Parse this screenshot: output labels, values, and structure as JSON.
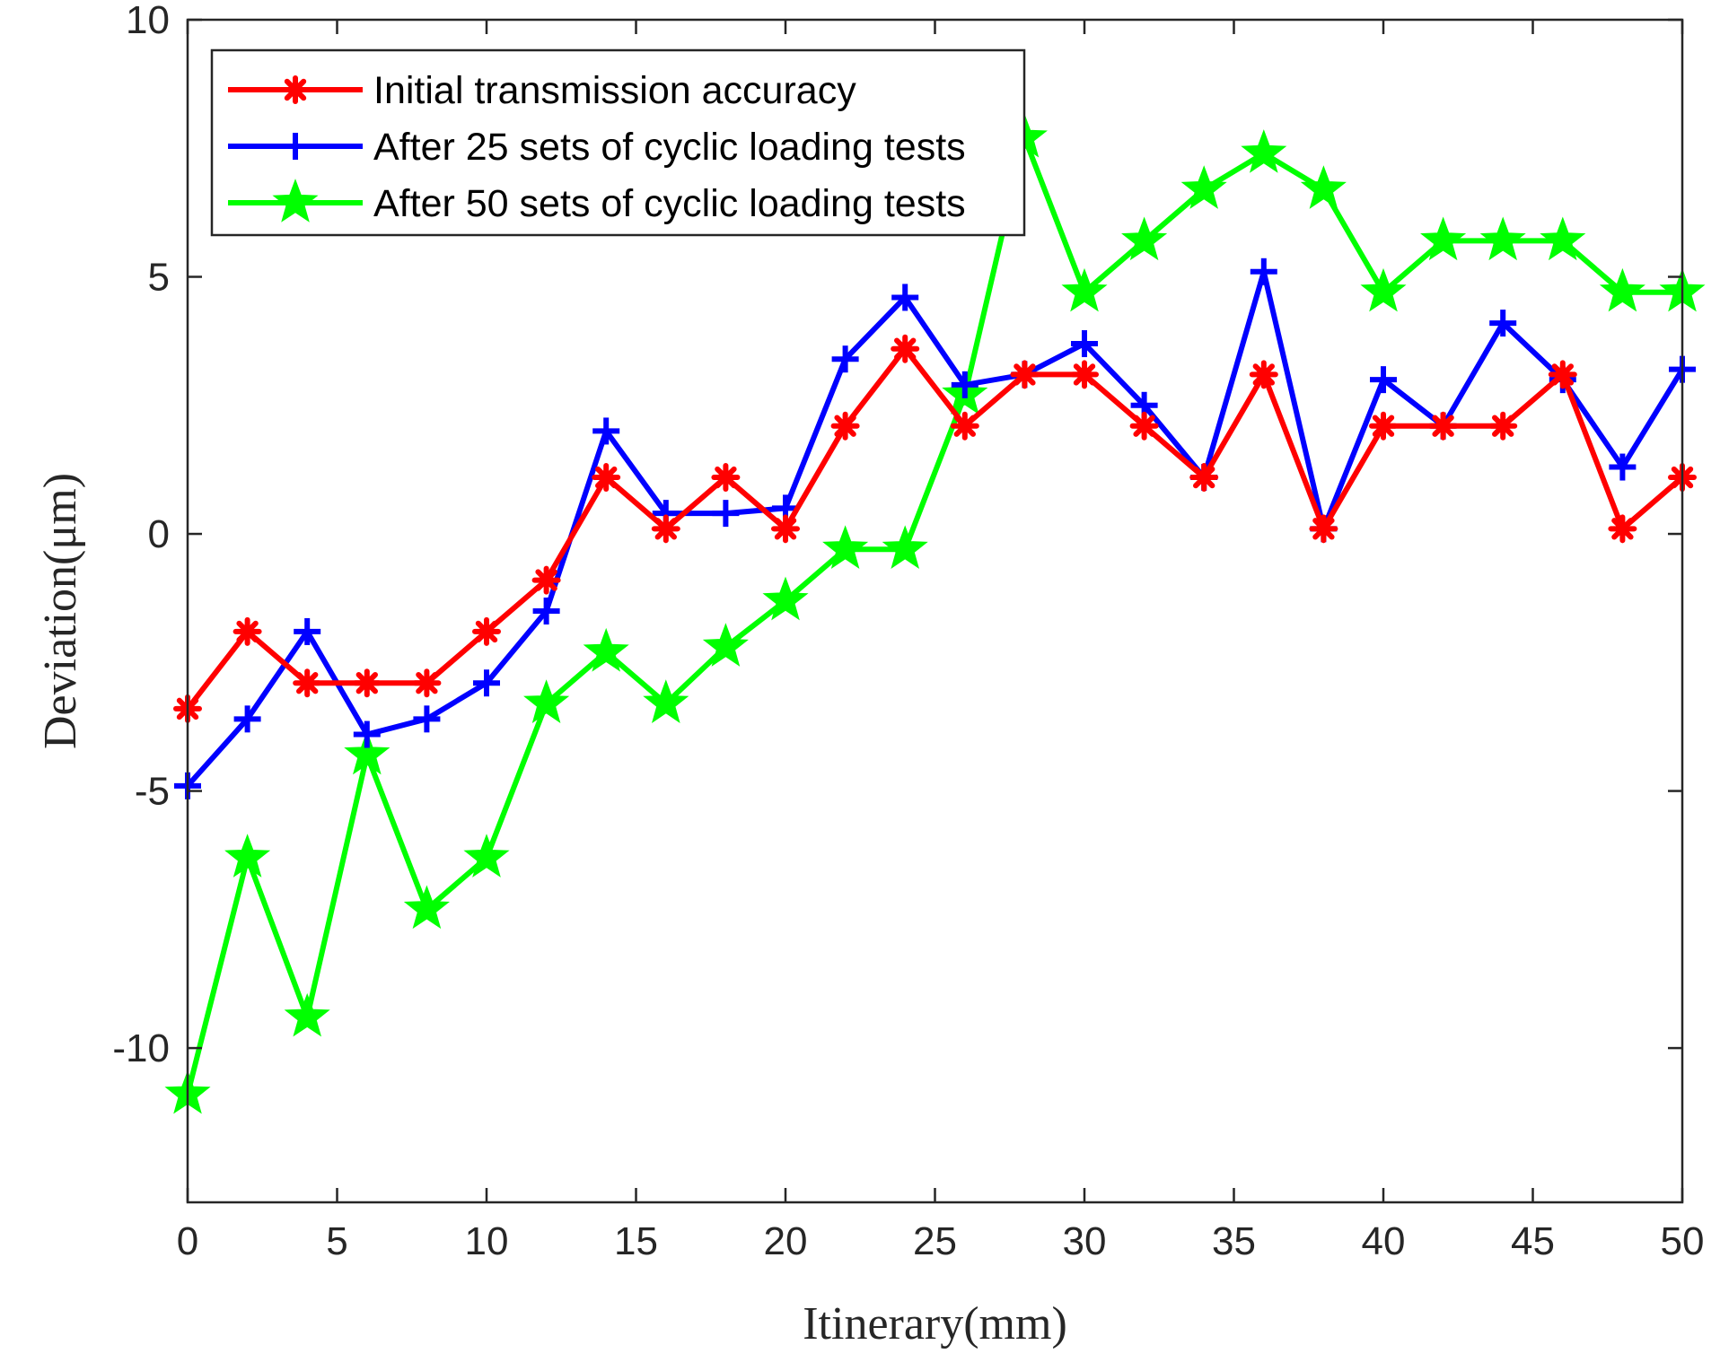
{
  "chart_data": {
    "type": "line",
    "title": "",
    "xlabel": "Itinerary(mm)",
    "ylabel": "Deviation(μm)",
    "xlim": [
      0,
      50
    ],
    "ylim": [
      -13,
      10
    ],
    "x_ticks": [
      0,
      5,
      10,
      15,
      20,
      25,
      30,
      35,
      40,
      45,
      50
    ],
    "x_tick_labels": [
      "0",
      "5",
      "10",
      "15",
      "20",
      "25",
      "30",
      "35",
      "40",
      "45",
      "50"
    ],
    "y_ticks": [
      -10,
      -5,
      0,
      5,
      10
    ],
    "y_tick_labels": [
      "-10",
      "-5",
      "0",
      "5",
      "10"
    ],
    "grid": false,
    "legend_position": "top-left",
    "x": [
      0,
      2,
      4,
      6,
      8,
      10,
      12,
      14,
      16,
      18,
      20,
      22,
      24,
      26,
      28,
      30,
      32,
      34,
      36,
      38,
      40,
      42,
      44,
      46,
      48,
      50
    ],
    "series": [
      {
        "name": "Initial transmission accuracy",
        "color": "#ff0000",
        "marker": "asterisk",
        "values": [
          -3.4,
          -1.9,
          -2.9,
          -2.9,
          -2.9,
          -1.9,
          -0.9,
          1.1,
          0.1,
          1.1,
          0.1,
          2.1,
          3.6,
          2.1,
          3.1,
          3.1,
          2.1,
          1.1,
          3.1,
          0.1,
          2.1,
          2.1,
          2.1,
          3.1,
          0.1,
          1.1
        ]
      },
      {
        "name": "After 25 sets of cyclic loading tests",
        "color": "#0000ff",
        "marker": "plus",
        "values": [
          -4.9,
          -3.6,
          -1.9,
          -3.9,
          -3.6,
          -2.9,
          -1.5,
          2.0,
          0.4,
          0.4,
          0.5,
          3.4,
          4.6,
          2.9,
          3.1,
          3.7,
          2.5,
          1.1,
          5.1,
          0.1,
          3.0,
          2.1,
          4.1,
          3.0,
          1.3,
          3.2
        ]
      },
      {
        "name": "After 50 sets of cyclic loading tests",
        "color": "#00ff00",
        "marker": "star",
        "values": [
          -10.9,
          -6.3,
          -9.4,
          -4.3,
          -7.3,
          -6.3,
          -3.3,
          -2.3,
          -3.3,
          -2.2,
          -1.3,
          -0.3,
          -0.3,
          2.7,
          7.7,
          4.7,
          5.7,
          6.7,
          7.4,
          6.7,
          4.7,
          5.7,
          5.7,
          5.7,
          4.7,
          4.7
        ]
      }
    ]
  }
}
